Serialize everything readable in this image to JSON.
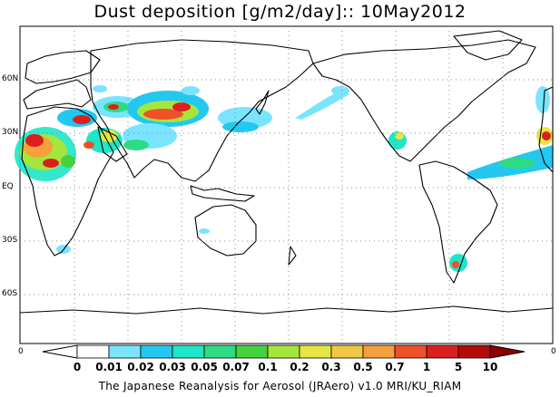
{
  "title": "Dust deposition [g/m2/day]:: 10May2012",
  "latitude_labels": [
    "60N",
    "30N",
    "EQ",
    "30S",
    "60S"
  ],
  "frame_labels": {
    "left_bottom": "0",
    "right_bottom": "0"
  },
  "colorbar": {
    "labels": [
      "0",
      "0.01",
      "0.02",
      "0.03",
      "0.05",
      "0.07",
      "0.1",
      "0.2",
      "0.3",
      "0.5",
      "0.7",
      "1",
      "5",
      "10"
    ],
    "colors": [
      "#ffffff",
      "#ffffff",
      "#7ae4ff",
      "#23c8f0",
      "#1ee6c8",
      "#2ddc82",
      "#45d23c",
      "#a5e63c",
      "#e6e641",
      "#f0c846",
      "#f5a03c",
      "#f05028",
      "#dc1e1e",
      "#b40a0a",
      "#8c0000"
    ]
  },
  "footer": "The Japanese Reanalysis for Aerosol (JRAero) v1.0 MRI/KU_RIAM"
}
